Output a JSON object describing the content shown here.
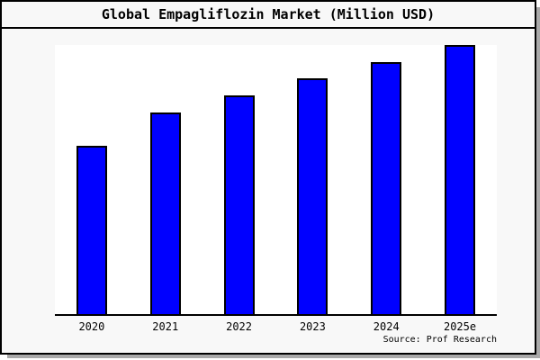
{
  "page": {
    "background": "#f8f8f8",
    "plot_background": "#ffffff",
    "frame_border_color": "#000000",
    "shadow_color": "#a9a9a9"
  },
  "chart_data": {
    "type": "bar",
    "title": "Global Empagliflozin Market (Million USD)",
    "categories": [
      "2020",
      "2021",
      "2022",
      "2023",
      "2024",
      "2025e"
    ],
    "values": [
      62.5,
      75,
      81.25,
      87.5,
      93.75,
      100
    ],
    "ylim": [
      0,
      100
    ],
    "xlabel": "",
    "ylabel": "",
    "y_axis_labels_visible": false,
    "grid": false,
    "legend": false,
    "bar_color": "#0000ff",
    "bar_border_color": "#000000",
    "axis_color": "#000000",
    "source_note": "Source: Prof Research",
    "value_note": "No y-axis scale is shown in the image; values are relative bar heights as percent of the tallest bar (ratios 10:12:13:14:15:16)"
  }
}
